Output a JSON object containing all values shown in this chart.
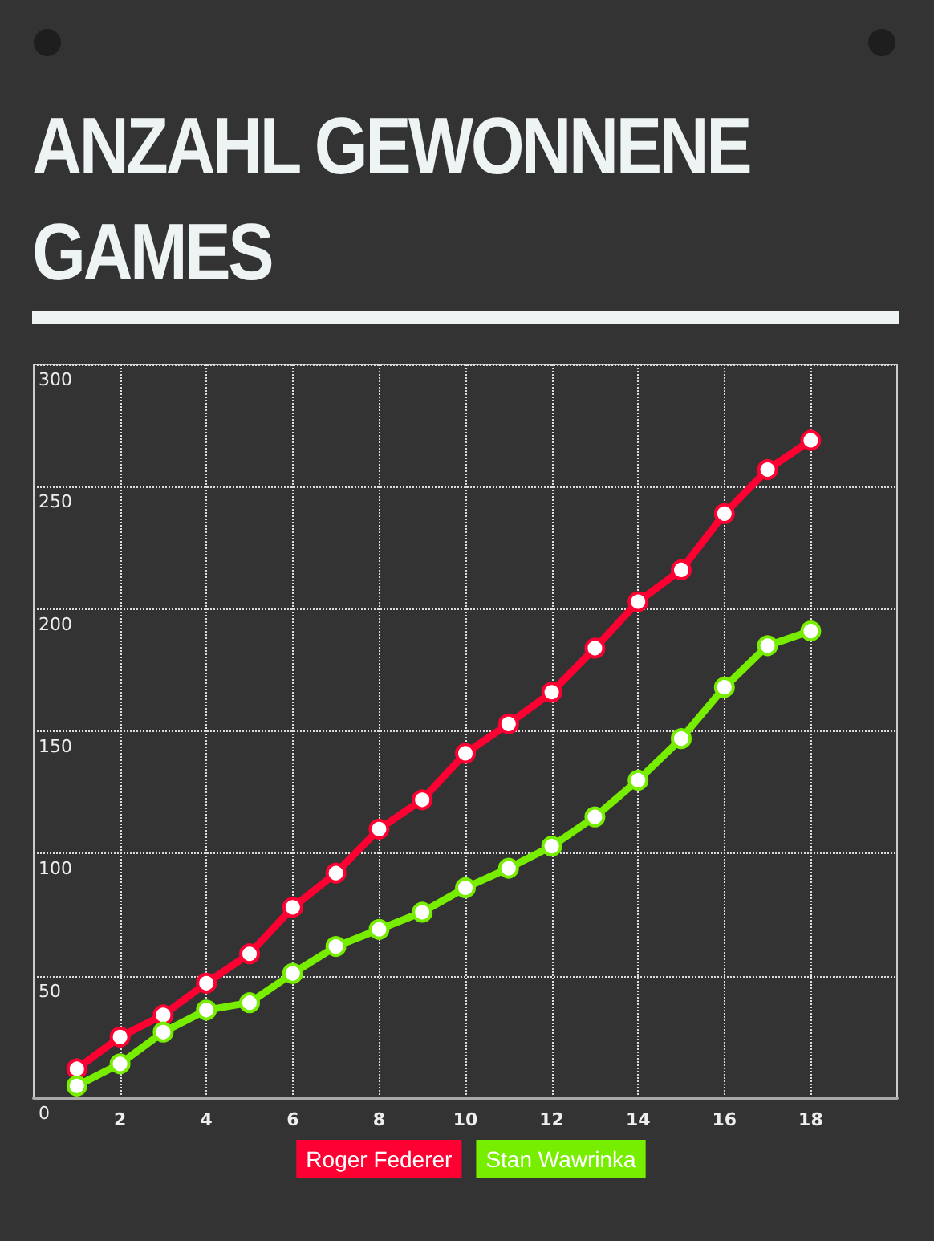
{
  "chart_data": {
    "type": "line",
    "title": "ANZAHL GEWONNENE GAMES",
    "x": [
      1,
      2,
      3,
      4,
      5,
      6,
      7,
      8,
      9,
      10,
      11,
      12,
      13,
      14,
      15,
      16,
      17,
      18
    ],
    "series": [
      {
        "name": "Roger Federer",
        "color": "#ff0033",
        "values": [
          12,
          25,
          34,
          47,
          59,
          78,
          92,
          110,
          122,
          141,
          153,
          166,
          184,
          203,
          216,
          239,
          257,
          269
        ]
      },
      {
        "name": "Stan Wawrinka",
        "color": "#77ee00",
        "values": [
          5,
          14,
          27,
          36,
          39,
          51,
          62,
          69,
          76,
          86,
          94,
          103,
          115,
          130,
          147,
          168,
          185,
          191
        ]
      }
    ],
    "xlim": [
      0,
      20
    ],
    "xticks": [
      2,
      4,
      6,
      8,
      10,
      12,
      14,
      16,
      18
    ],
    "ylim": [
      0,
      300
    ],
    "yticks": [
      0,
      50,
      100,
      150,
      200,
      250,
      300
    ],
    "grid": true,
    "legend": "bottom",
    "marker": "circle",
    "line_style": "solid"
  }
}
